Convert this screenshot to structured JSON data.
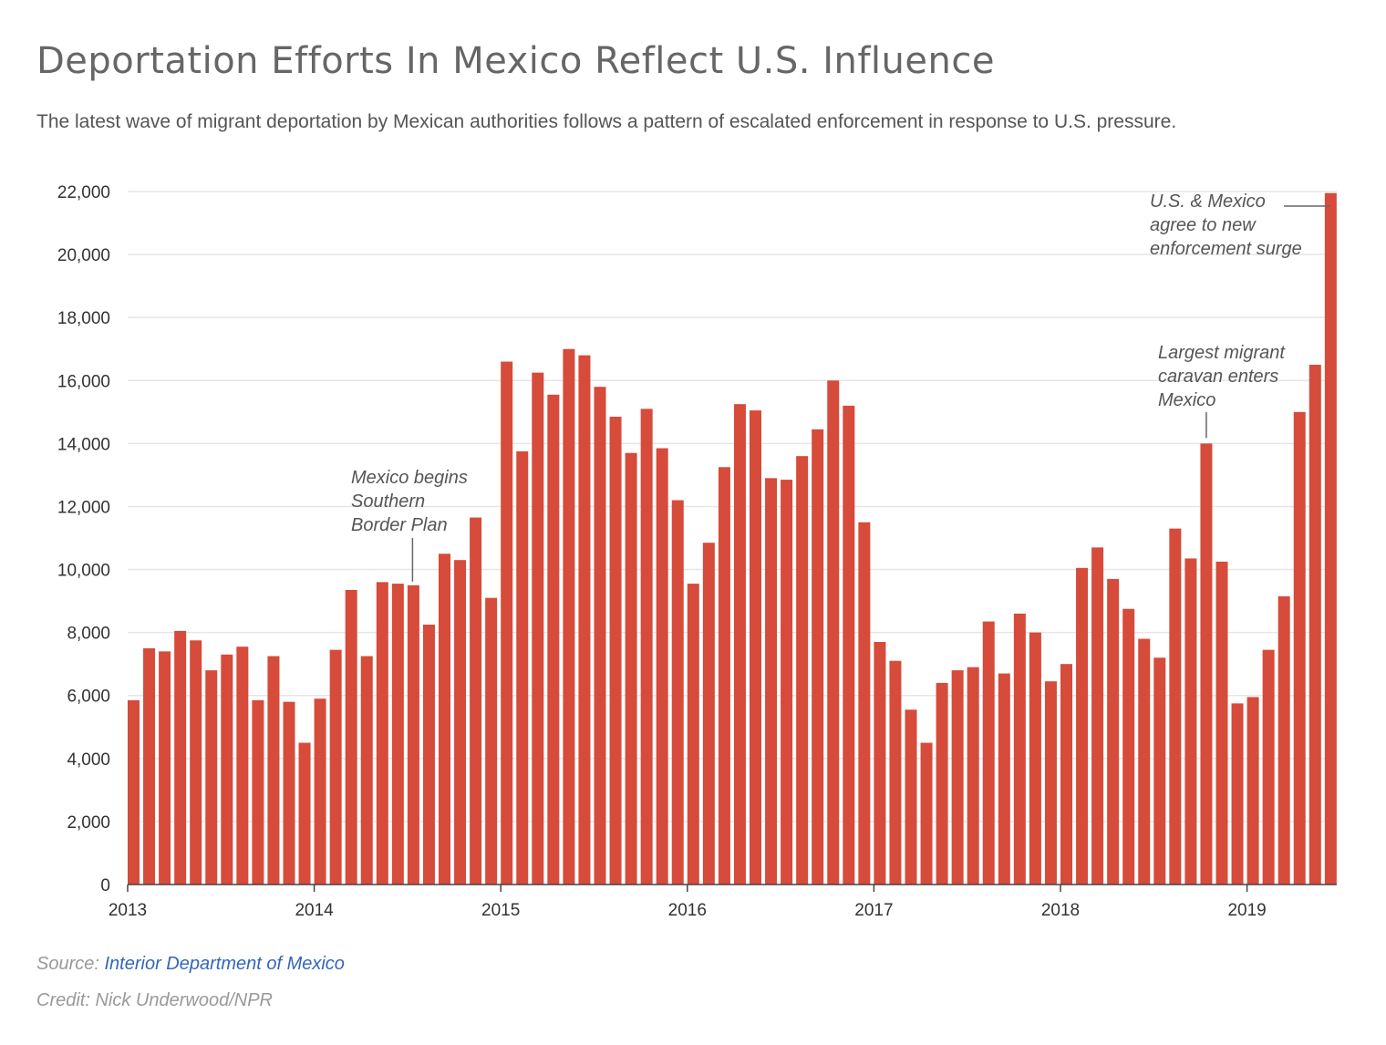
{
  "header": {
    "title": "Deportation Efforts In Mexico Reflect U.S. Influence",
    "subtitle": "The latest wave of migrant deportation by Mexican authorities follows a pattern of escalated enforcement in response to U.S. pressure."
  },
  "footer": {
    "source_label": "Source: ",
    "source_link": "Interior Department of Mexico",
    "credit": "Credit: Nick Underwood/NPR"
  },
  "colors": {
    "bar": "#d64b3a",
    "grid": "#e6e6e6",
    "axis": "#444444",
    "annotation_line": "#666666"
  },
  "chart_data": {
    "type": "bar",
    "title": "Deportation Efforts In Mexico Reflect U.S. Influence",
    "xlabel": "",
    "ylabel": "",
    "ylim": [
      0,
      22000
    ],
    "yticks": [
      0,
      2000,
      4000,
      6000,
      8000,
      10000,
      12000,
      14000,
      16000,
      18000,
      20000,
      22000
    ],
    "ytick_labels": [
      "0",
      "2,000",
      "4,000",
      "6,000",
      "8,000",
      "10,000",
      "12,000",
      "14,000",
      "16,000",
      "18,000",
      "20,000",
      "22,000"
    ],
    "xtick_labels": [
      "2013",
      "2014",
      "2015",
      "2016",
      "2017",
      "2018",
      "2019"
    ],
    "grid": true,
    "start": "2013-01",
    "categories": [
      "2013-01",
      "2013-02",
      "2013-03",
      "2013-04",
      "2013-05",
      "2013-06",
      "2013-07",
      "2013-08",
      "2013-09",
      "2013-10",
      "2013-11",
      "2013-12",
      "2014-01",
      "2014-02",
      "2014-03",
      "2014-04",
      "2014-05",
      "2014-06",
      "2014-07",
      "2014-08",
      "2014-09",
      "2014-10",
      "2014-11",
      "2014-12",
      "2015-01",
      "2015-02",
      "2015-03",
      "2015-04",
      "2015-05",
      "2015-06",
      "2015-07",
      "2015-08",
      "2015-09",
      "2015-10",
      "2015-11",
      "2015-12",
      "2016-01",
      "2016-02",
      "2016-03",
      "2016-04",
      "2016-05",
      "2016-06",
      "2016-07",
      "2016-08",
      "2016-09",
      "2016-10",
      "2016-11",
      "2016-12",
      "2017-01",
      "2017-02",
      "2017-03",
      "2017-04",
      "2017-05",
      "2017-06",
      "2017-07",
      "2017-08",
      "2017-09",
      "2017-10",
      "2017-11",
      "2017-12",
      "2018-01",
      "2018-02",
      "2018-03",
      "2018-04",
      "2018-05",
      "2018-06",
      "2018-07",
      "2018-08",
      "2018-09",
      "2018-10",
      "2018-11",
      "2018-12",
      "2019-01",
      "2019-02",
      "2019-03",
      "2019-04",
      "2019-05",
      "2019-06"
    ],
    "values": [
      5850,
      7500,
      7400,
      8050,
      7750,
      6800,
      7300,
      7550,
      5850,
      7250,
      5800,
      4500,
      5900,
      7450,
      9350,
      7250,
      9600,
      9550,
      9500,
      8250,
      10500,
      10300,
      11650,
      9100,
      16600,
      13750,
      16250,
      15550,
      17000,
      16800,
      15800,
      14850,
      13700,
      15100,
      13850,
      12200,
      9550,
      10850,
      13250,
      15250,
      15050,
      12900,
      12850,
      13600,
      14450,
      16000,
      15200,
      11500,
      7700,
      7100,
      5550,
      4500,
      6400,
      6800,
      6900,
      8350,
      6700,
      8600,
      8000,
      6450,
      7000,
      10050,
      10700,
      9700,
      8750,
      7800,
      7200,
      11300,
      10350,
      14000,
      10250,
      5750,
      5950,
      7450,
      9150,
      15000,
      16500,
      21950
    ],
    "annotations": [
      {
        "lines": [
          "Mexico begins",
          "Southern",
          "Border Plan"
        ],
        "category": "2014-07"
      },
      {
        "lines": [
          "Largest migrant",
          "caravan enters",
          "Mexico"
        ],
        "category": "2018-10"
      },
      {
        "lines": [
          "U.S. & Mexico",
          "agree to new",
          "enforcement surge"
        ],
        "category": "2019-06"
      }
    ]
  }
}
